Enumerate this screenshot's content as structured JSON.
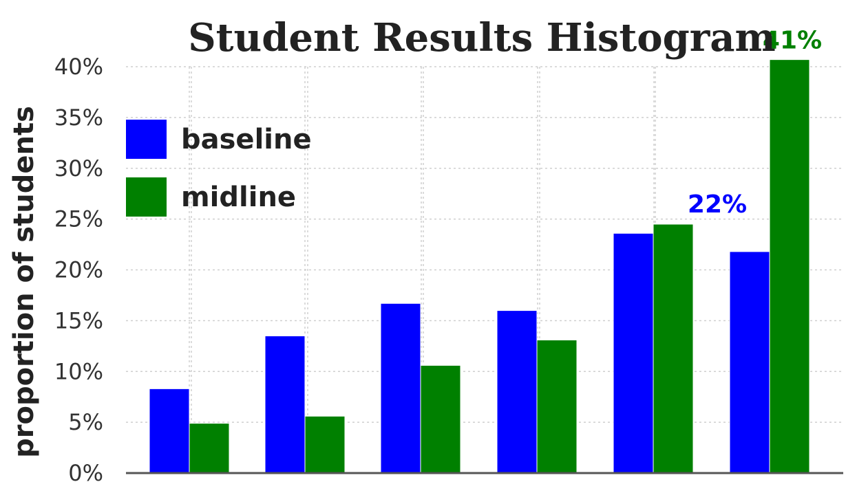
{
  "chart_data": {
    "type": "bar",
    "title": "Student Results Histogram",
    "xlabel": "",
    "ylabel": "proportion of students",
    "categories": [
      "",
      "",
      "",
      "",
      "",
      ""
    ],
    "series": [
      {
        "name": "baseline",
        "color": "#0000ff",
        "values": [
          8.3,
          13.5,
          16.7,
          16.0,
          23.6,
          21.8
        ]
      },
      {
        "name": "midline",
        "color": "#008000",
        "values": [
          4.9,
          5.6,
          10.6,
          13.1,
          24.5,
          40.7
        ]
      }
    ],
    "ylim": [
      0,
      40
    ],
    "yticks": [
      0,
      5,
      10,
      15,
      20,
      25,
      30,
      35,
      40
    ],
    "ytick_labels": [
      "0%",
      "5%",
      "10%",
      "15%",
      "20%",
      "25%",
      "30%",
      "35%",
      "40%"
    ],
    "annotations": [
      {
        "text": "22%",
        "series": "baseline",
        "category_index": 5,
        "color": "#0000ff"
      },
      {
        "text": "41%",
        "series": "midline",
        "category_index": 5,
        "color": "#008000"
      }
    ],
    "legend": {
      "position": "top-left",
      "entries": [
        "baseline",
        "midline"
      ]
    },
    "grid": true
  }
}
